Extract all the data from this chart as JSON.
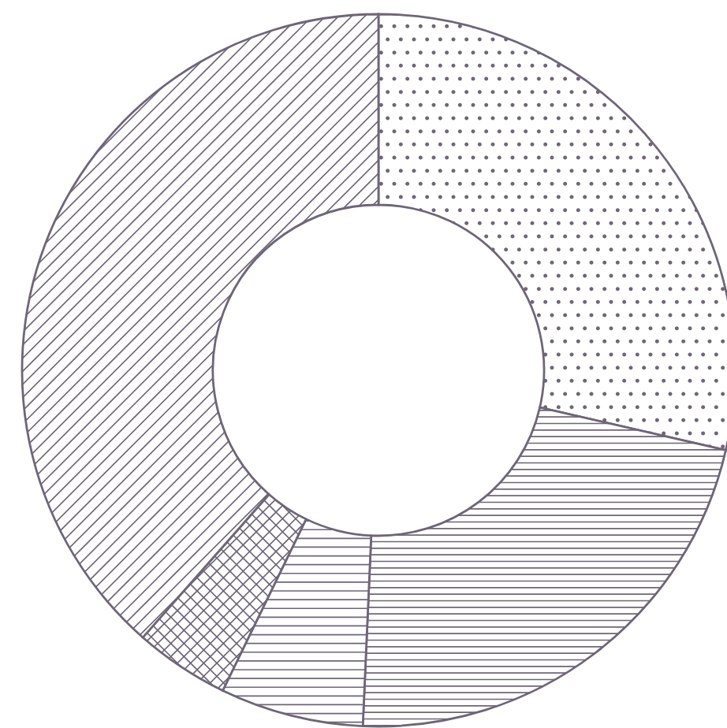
{
  "chart_data": {
    "type": "donut",
    "categories": [
      null,
      null,
      null,
      null,
      null
    ],
    "values": [
      28.6,
      22.1,
      6.5,
      4.3,
      38.5
    ],
    "colors": [
      "#6e6577",
      "#6e6577",
      "#6e6577",
      "#6e6577",
      "#6e6577"
    ]
  }
}
